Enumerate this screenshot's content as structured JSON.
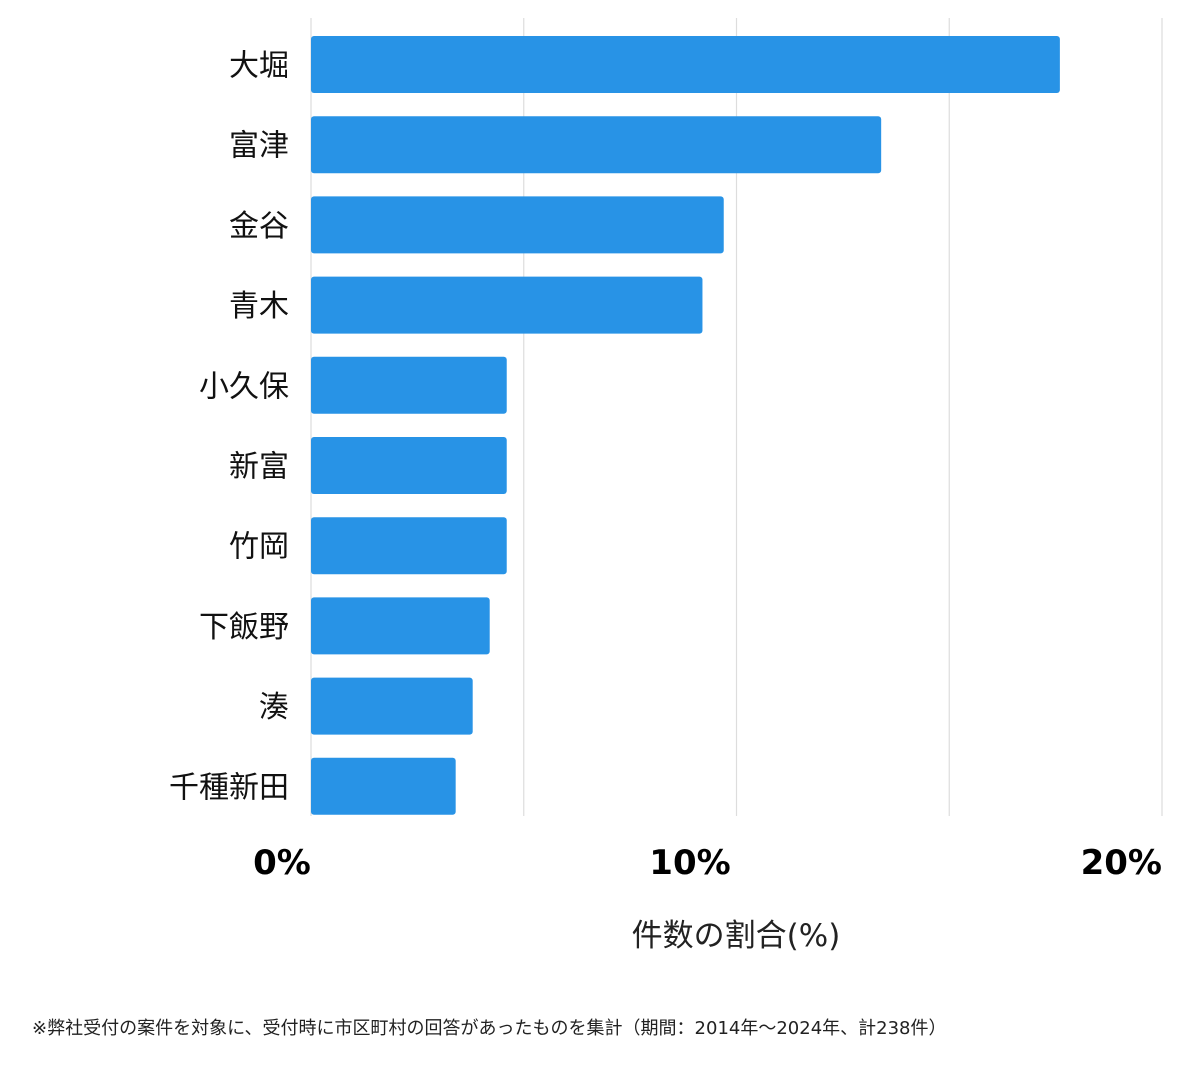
{
  "chart_data": {
    "type": "bar",
    "orientation": "horizontal",
    "categories": [
      "大堀",
      "富津",
      "金谷",
      "青木",
      "小久保",
      "新富",
      "竹岡",
      "下飯野",
      "湊",
      "千種新田"
    ],
    "values": [
      17.6,
      13.4,
      9.7,
      9.2,
      4.6,
      4.6,
      4.6,
      4.2,
      3.8,
      3.4
    ],
    "xlim": [
      0,
      20
    ],
    "xticks": [
      0,
      10,
      20
    ],
    "xtick_labels": [
      "0%",
      "10%",
      "20%"
    ],
    "minor_gridlines": [
      5,
      15
    ],
    "xlabel": "件数の割合(%)",
    "ylabel": "",
    "title": "",
    "grid": true,
    "legend": "none",
    "bar_color": "#2893e6",
    "grid_color": "#dddddd"
  },
  "footnote": "※弊社受付の案件を対象に、受付時に市区町村の回答があったものを集計（期間：2014年〜2024年、計238件）"
}
